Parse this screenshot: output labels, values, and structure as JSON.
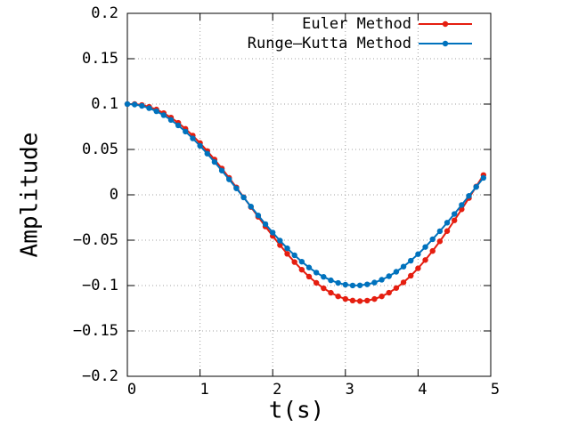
{
  "chart_data": {
    "type": "line",
    "xlabel": "t(s)",
    "ylabel": "Amplitude",
    "x": [
      0,
      0.1,
      0.2,
      0.3,
      0.4,
      0.5,
      0.6,
      0.7,
      0.8,
      0.9,
      1,
      1.1,
      1.2,
      1.3,
      1.4,
      1.5,
      1.6,
      1.7,
      1.8,
      1.9,
      2,
      2.1,
      2.2,
      2.3,
      2.4,
      2.5,
      2.6,
      2.7,
      2.8,
      2.9,
      3,
      3.1,
      3.2,
      3.3,
      3.4,
      3.5,
      3.6,
      3.7,
      3.8,
      3.9,
      4,
      4.1,
      4.2,
      4.3,
      4.4,
      4.5,
      4.6,
      4.7,
      4.8,
      4.9
    ],
    "series": [
      {
        "name": "Euler Method",
        "color": "#e51e10",
        "values": [
          0.1,
          0.1,
          0.099,
          0.097,
          0.094,
          0.09005,
          0.08515,
          0.07935,
          0.0727,
          0.06525,
          0.05708,
          0.04826,
          0.03886,
          0.02898,
          0.01871,
          0.00815,
          -0.00259,
          -0.01342,
          -0.02422,
          -0.03489,
          -0.04531,
          -0.05538,
          -0.065,
          -0.07407,
          -0.08249,
          -0.09017,
          -0.09702,
          -0.10297,
          -0.10795,
          -0.1119,
          -0.11477,
          -0.11652,
          -0.11712,
          -0.11656,
          -0.11483,
          -0.11193,
          -0.10788,
          -0.10272,
          -0.09647,
          -0.0892,
          -0.08096,
          -0.07183,
          -0.06189,
          -0.05124,
          -0.03996,
          -0.02817,
          -0.01598,
          -0.00351,
          0.00912,
          0.02178
        ]
      },
      {
        "name": "Runge–Kutta Method",
        "color": "#0072bd",
        "values": [
          0.1,
          0.0995,
          0.098,
          0.0955,
          0.0921,
          0.0878,
          0.0825,
          0.0765,
          0.0697,
          0.0622,
          0.054,
          0.0454,
          0.0362,
          0.0267,
          0.017,
          0.0071,
          -0.0029,
          -0.0129,
          -0.0227,
          -0.0323,
          -0.0416,
          -0.0505,
          -0.0589,
          -0.0666,
          -0.0737,
          -0.0801,
          -0.0857,
          -0.0904,
          -0.0942,
          -0.0971,
          -0.099,
          -0.0999,
          -0.0998,
          -0.0987,
          -0.0967,
          -0.0936,
          -0.0897,
          -0.0848,
          -0.0791,
          -0.0726,
          -0.0654,
          -0.0575,
          -0.049,
          -0.0401,
          -0.0307,
          -0.0211,
          -0.0112,
          -0.0012,
          0.0087,
          0.0187
        ]
      }
    ],
    "xlim": [
      0,
      5
    ],
    "xticks": [
      0,
      1,
      2,
      3,
      4,
      5
    ],
    "ylim": [
      -0.2,
      0.2
    ],
    "yticks": [
      0.2,
      0.15,
      0.1,
      0.05,
      0,
      {
        "value": -0.05,
        "label": "−0.05"
      },
      {
        "value": -0.1,
        "label": "−0.1"
      },
      {
        "value": -0.15,
        "label": "−0.15"
      },
      {
        "value": -0.2,
        "label": "−0.2"
      }
    ],
    "grid": true,
    "legend": "top-right"
  }
}
